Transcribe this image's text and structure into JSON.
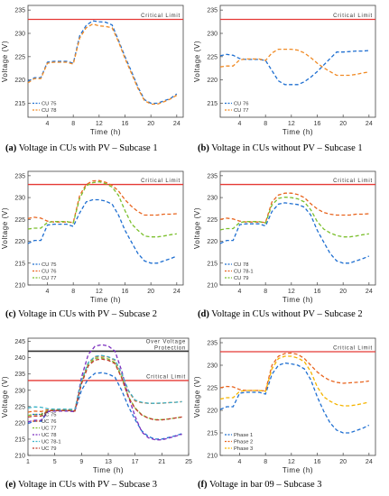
{
  "figure": {
    "panels": [
      {
        "id": "a",
        "caption_label": "a",
        "caption_text": "Voltage in CUs with PV – Subcase 1"
      },
      {
        "id": "b",
        "caption_label": "b",
        "caption_text": "Voltage in CUs without PV – Subcase 1"
      },
      {
        "id": "c",
        "caption_label": "c",
        "caption_text": "Voltage in CUs with PV – Subcase 2"
      },
      {
        "id": "d",
        "caption_label": "d",
        "caption_text": "Voltage in CUs without PV – Subcase 2"
      },
      {
        "id": "e",
        "caption_label": "e",
        "caption_text": "Voltage in CUs with PV – Subcase 3"
      },
      {
        "id": "f",
        "caption_label": "f",
        "caption_text": "Voltage in bar 09 – Subcase 3"
      }
    ]
  },
  "chart_data": [
    {
      "type": "line",
      "ylabel": "Voltage (V)",
      "xlabel": "Time (h)",
      "xlim": [
        1,
        25
      ],
      "ylim": [
        212,
        236
      ],
      "xticks": [
        4,
        8,
        12,
        16,
        20,
        24
      ],
      "yticks": [
        215,
        220,
        225,
        230,
        235
      ],
      "annotations": [
        {
          "text": "Critical Limit",
          "y": 233,
          "color": "#e53935"
        }
      ],
      "legend_position": "bottom-left",
      "x": [
        1,
        2,
        3,
        4,
        5,
        6,
        7,
        8,
        9,
        10,
        11,
        12,
        13,
        14,
        15,
        16,
        17,
        18,
        19,
        20,
        21,
        22,
        23,
        24
      ],
      "series": [
        {
          "name": "CU 75",
          "color": "#1f6fd1",
          "values": [
            219.7,
            220.5,
            220.5,
            223.8,
            224.0,
            224.0,
            224.0,
            223.6,
            229.5,
            231.7,
            232.7,
            232.5,
            232.4,
            231.8,
            228.5,
            225.0,
            221.8,
            218.5,
            215.8,
            215.0,
            215.0,
            215.5,
            216.0,
            217.0
          ]
        },
        {
          "name": "CU 78",
          "color": "#f08a24",
          "values": [
            219.4,
            220.3,
            220.3,
            223.6,
            223.8,
            223.8,
            223.8,
            223.4,
            229.0,
            231.2,
            232.0,
            231.6,
            231.5,
            231.2,
            228.2,
            224.6,
            221.4,
            218.2,
            215.6,
            214.8,
            214.8,
            215.3,
            215.9,
            216.7
          ]
        }
      ]
    },
    {
      "type": "line",
      "ylabel": "Voltage (V)",
      "xlabel": "Time (h)",
      "xlim": [
        1,
        25
      ],
      "ylim": [
        212,
        236
      ],
      "xticks": [
        4,
        8,
        12,
        16,
        20,
        24
      ],
      "yticks": [
        215,
        220,
        225,
        230,
        235
      ],
      "annotations": [
        {
          "text": "Critical Limit",
          "y": 233,
          "color": "#e53935"
        }
      ],
      "legend_position": "bottom-left",
      "x": [
        1,
        2,
        3,
        4,
        5,
        6,
        7,
        8,
        9,
        10,
        11,
        12,
        13,
        14,
        15,
        16,
        17,
        18,
        19,
        20,
        21,
        22,
        23,
        24
      ],
      "series": [
        {
          "name": "CU 76",
          "color": "#1f6fd1",
          "values": [
            225.2,
            225.5,
            225.3,
            224.6,
            224.4,
            224.4,
            224.4,
            224.2,
            222.0,
            219.8,
            219.0,
            219.0,
            219.0,
            219.6,
            220.6,
            221.8,
            223.2,
            224.6,
            226.0,
            226.0,
            226.1,
            226.2,
            226.2,
            226.3
          ]
        },
        {
          "name": "CU 77",
          "color": "#f08a24",
          "values": [
            222.8,
            223.0,
            223.0,
            224.3,
            224.5,
            224.5,
            224.5,
            224.2,
            225.8,
            226.6,
            226.6,
            226.6,
            226.4,
            225.8,
            224.8,
            223.6,
            222.6,
            221.8,
            221.0,
            221.0,
            221.0,
            221.2,
            221.5,
            221.7
          ]
        }
      ]
    },
    {
      "type": "line",
      "ylabel": "Voltage (V)",
      "xlabel": "Time (h)",
      "xlim": [
        1,
        25
      ],
      "ylim": [
        210,
        236
      ],
      "xticks": [
        4,
        8,
        12,
        16,
        20,
        24
      ],
      "yticks": [
        210,
        215,
        220,
        225,
        230,
        235
      ],
      "annotations": [
        {
          "text": "Critical Limit",
          "y": 233,
          "color": "#e53935"
        }
      ],
      "legend_position": "bottom-left",
      "x": [
        1,
        2,
        3,
        4,
        5,
        6,
        7,
        8,
        9,
        10,
        11,
        12,
        13,
        14,
        15,
        16,
        17,
        18,
        19,
        20,
        21,
        22,
        23,
        24
      ],
      "series": [
        {
          "name": "CU 75",
          "color": "#1f6fd1",
          "values": [
            219.5,
            220.2,
            220.2,
            223.7,
            223.9,
            223.9,
            223.9,
            223.4,
            226.5,
            229.0,
            229.5,
            229.5,
            229.2,
            228.5,
            226.0,
            222.5,
            219.8,
            217.2,
            215.5,
            215.0,
            215.0,
            215.5,
            216.0,
            216.6
          ]
        },
        {
          "name": "CU 76",
          "color": "#e8641e",
          "values": [
            225.2,
            225.5,
            225.3,
            224.6,
            224.4,
            224.4,
            224.4,
            224.3,
            230.5,
            233.0,
            233.8,
            233.9,
            233.5,
            232.8,
            231.5,
            229.5,
            228.0,
            226.8,
            226.0,
            226.0,
            226.0,
            226.2,
            226.2,
            226.3
          ]
        },
        {
          "name": "CU 77",
          "color": "#7bbf2c",
          "values": [
            222.8,
            223.0,
            223.0,
            224.3,
            224.5,
            224.5,
            224.5,
            224.2,
            229.8,
            232.7,
            233.4,
            233.6,
            233.2,
            232.4,
            230.5,
            227.0,
            224.0,
            222.5,
            221.2,
            221.0,
            221.0,
            221.2,
            221.5,
            221.7
          ]
        }
      ]
    },
    {
      "type": "line",
      "ylabel": "Voltage (V)",
      "xlabel": "Time (h)",
      "xlim": [
        1,
        25
      ],
      "ylim": [
        210,
        236
      ],
      "xticks": [
        4,
        8,
        12,
        16,
        20,
        24
      ],
      "yticks": [
        210,
        215,
        220,
        225,
        230,
        235
      ],
      "annotations": [
        {
          "text": "Critical Limit",
          "y": 233,
          "color": "#e53935"
        }
      ],
      "legend_position": "bottom-left",
      "x": [
        1,
        2,
        3,
        4,
        5,
        6,
        7,
        8,
        9,
        10,
        11,
        12,
        13,
        14,
        15,
        16,
        17,
        18,
        19,
        20,
        21,
        22,
        23,
        24
      ],
      "series": [
        {
          "name": "CU 78",
          "color": "#1f6fd1",
          "values": [
            219.5,
            220.2,
            220.2,
            223.8,
            224.0,
            224.0,
            224.0,
            223.5,
            226.8,
            228.5,
            228.8,
            228.6,
            228.4,
            227.8,
            226.0,
            222.5,
            219.8,
            217.2,
            215.5,
            215.0,
            215.0,
            215.5,
            216.0,
            216.6
          ]
        },
        {
          "name": "CU 78-1",
          "color": "#e8641e",
          "values": [
            225.0,
            225.3,
            225.1,
            224.6,
            224.4,
            224.4,
            224.4,
            224.3,
            229.0,
            230.6,
            231.0,
            231.0,
            230.7,
            230.0,
            228.6,
            227.4,
            226.6,
            226.2,
            226.0,
            226.0,
            226.0,
            226.2,
            226.2,
            226.3
          ]
        },
        {
          "name": "CU 79",
          "color": "#7bbf2c",
          "values": [
            222.6,
            222.9,
            222.9,
            224.3,
            224.5,
            224.5,
            224.5,
            224.2,
            228.3,
            229.8,
            230.1,
            230.0,
            229.7,
            229.0,
            227.2,
            224.5,
            222.8,
            221.9,
            221.3,
            221.0,
            221.0,
            221.2,
            221.5,
            221.7
          ]
        }
      ]
    },
    {
      "type": "line",
      "ylabel": "Voltage (V)",
      "xlabel": "Time (h)",
      "xlim": [
        1,
        25
      ],
      "ylim": [
        210,
        246
      ],
      "xticks": [
        1,
        5,
        9,
        13,
        17,
        21,
        25
      ],
      "yticks": [
        210,
        215,
        220,
        225,
        230,
        235,
        240,
        245
      ],
      "annotations": [
        {
          "text": "Over Voltage Protection",
          "y": 242,
          "color": "#333333"
        },
        {
          "text": "Critical Limit",
          "y": 233,
          "color": "#e53935"
        }
      ],
      "legend_position": "bottom-left",
      "x": [
        1,
        2,
        3,
        4,
        5,
        6,
        7,
        8,
        9,
        10,
        11,
        12,
        13,
        14,
        15,
        16,
        17,
        18,
        19,
        20,
        21,
        22,
        23,
        24
      ],
      "series": [
        {
          "name": "UC 75",
          "color": "#1f6fd1",
          "values": [
            219.8,
            220.5,
            220.5,
            223.6,
            223.8,
            223.8,
            223.8,
            223.6,
            230.0,
            233.5,
            235.2,
            235.4,
            235.0,
            234.0,
            230.0,
            225.0,
            221.0,
            217.5,
            215.8,
            215.0,
            215.0,
            215.5,
            216.0,
            216.7
          ]
        },
        {
          "name": "UC 76",
          "color": "#e8641e",
          "values": [
            223.3,
            223.6,
            223.5,
            224.1,
            224.0,
            224.0,
            224.0,
            223.9,
            233.0,
            238.5,
            240.2,
            240.5,
            240.2,
            239.2,
            235.0,
            229.8,
            226.7,
            226.2,
            226.0,
            226.0,
            226.0,
            226.2,
            226.3,
            226.5
          ]
        },
        {
          "name": "UC 77",
          "color": "#7bbf2c",
          "values": [
            222.3,
            222.6,
            222.6,
            223.8,
            223.9,
            223.9,
            223.9,
            223.7,
            232.5,
            238.0,
            239.8,
            240.0,
            239.6,
            238.5,
            234.0,
            228.0,
            224.6,
            222.5,
            221.5,
            221.0,
            221.0,
            221.2,
            221.5,
            221.8
          ]
        },
        {
          "name": "UC 78",
          "color": "#7b2fbf",
          "values": [
            220.3,
            220.8,
            220.8,
            223.5,
            223.6,
            223.6,
            223.6,
            223.4,
            234.0,
            241.0,
            243.5,
            244.0,
            243.6,
            242.0,
            236.0,
            228.0,
            222.0,
            217.2,
            215.4,
            214.8,
            214.8,
            215.3,
            215.9,
            216.5
          ]
        },
        {
          "name": "UC 78-1",
          "color": "#3cb4c8",
          "values": [
            224.6,
            224.9,
            224.8,
            224.3,
            224.2,
            224.2,
            224.2,
            224.1,
            233.0,
            238.5,
            240.4,
            240.7,
            240.3,
            239.4,
            235.2,
            230.0,
            227.0,
            226.3,
            226.0,
            226.0,
            226.1,
            226.2,
            226.3,
            226.5
          ]
        },
        {
          "name": "UC 79",
          "color": "#c0392b",
          "values": [
            221.8,
            222.1,
            222.1,
            223.7,
            223.8,
            223.8,
            223.8,
            223.6,
            232.0,
            237.5,
            239.3,
            239.6,
            239.2,
            238.2,
            233.8,
            227.8,
            224.4,
            222.4,
            221.4,
            220.9,
            220.9,
            221.2,
            221.5,
            221.8
          ]
        }
      ]
    },
    {
      "type": "line",
      "ylabel": "Voltage (V)",
      "xlabel": "Time (h)",
      "xlim": [
        1,
        25
      ],
      "ylim": [
        210,
        236
      ],
      "xticks": [
        4,
        8,
        12,
        16,
        20,
        24
      ],
      "yticks": [
        210,
        215,
        220,
        225,
        230,
        235
      ],
      "annotations": [
        {
          "text": "Critical Limit",
          "y": 233,
          "color": "#e53935"
        }
      ],
      "legend_position": "bottom-left",
      "x": [
        1,
        2,
        3,
        4,
        5,
        6,
        7,
        8,
        9,
        10,
        11,
        12,
        13,
        14,
        15,
        16,
        17,
        18,
        19,
        20,
        21,
        22,
        23,
        24
      ],
      "series": [
        {
          "name": "Phase 1",
          "color": "#1f6fd1",
          "values": [
            220.2,
            220.8,
            220.8,
            223.8,
            224.0,
            224.0,
            224.0,
            223.6,
            228.0,
            230.0,
            230.5,
            230.3,
            230.0,
            229.2,
            226.8,
            223.0,
            219.8,
            217.2,
            215.6,
            215.0,
            215.0,
            215.5,
            216.0,
            216.7
          ]
        },
        {
          "name": "Phase 2",
          "color": "#e8641e",
          "values": [
            225.0,
            225.3,
            225.2,
            224.6,
            224.4,
            224.4,
            224.4,
            224.3,
            230.0,
            232.0,
            232.6,
            232.7,
            232.4,
            231.5,
            230.0,
            228.5,
            227.4,
            226.6,
            226.2,
            226.0,
            226.1,
            226.2,
            226.3,
            226.5
          ]
        },
        {
          "name": "Phase 3",
          "color": "#f5b400",
          "values": [
            222.5,
            222.8,
            222.8,
            224.2,
            224.4,
            224.4,
            224.4,
            224.2,
            229.2,
            231.5,
            232.0,
            232.0,
            231.6,
            230.8,
            228.6,
            225.2,
            223.0,
            222.0,
            221.3,
            221.0,
            221.0,
            221.2,
            221.5,
            221.8
          ]
        }
      ]
    }
  ]
}
